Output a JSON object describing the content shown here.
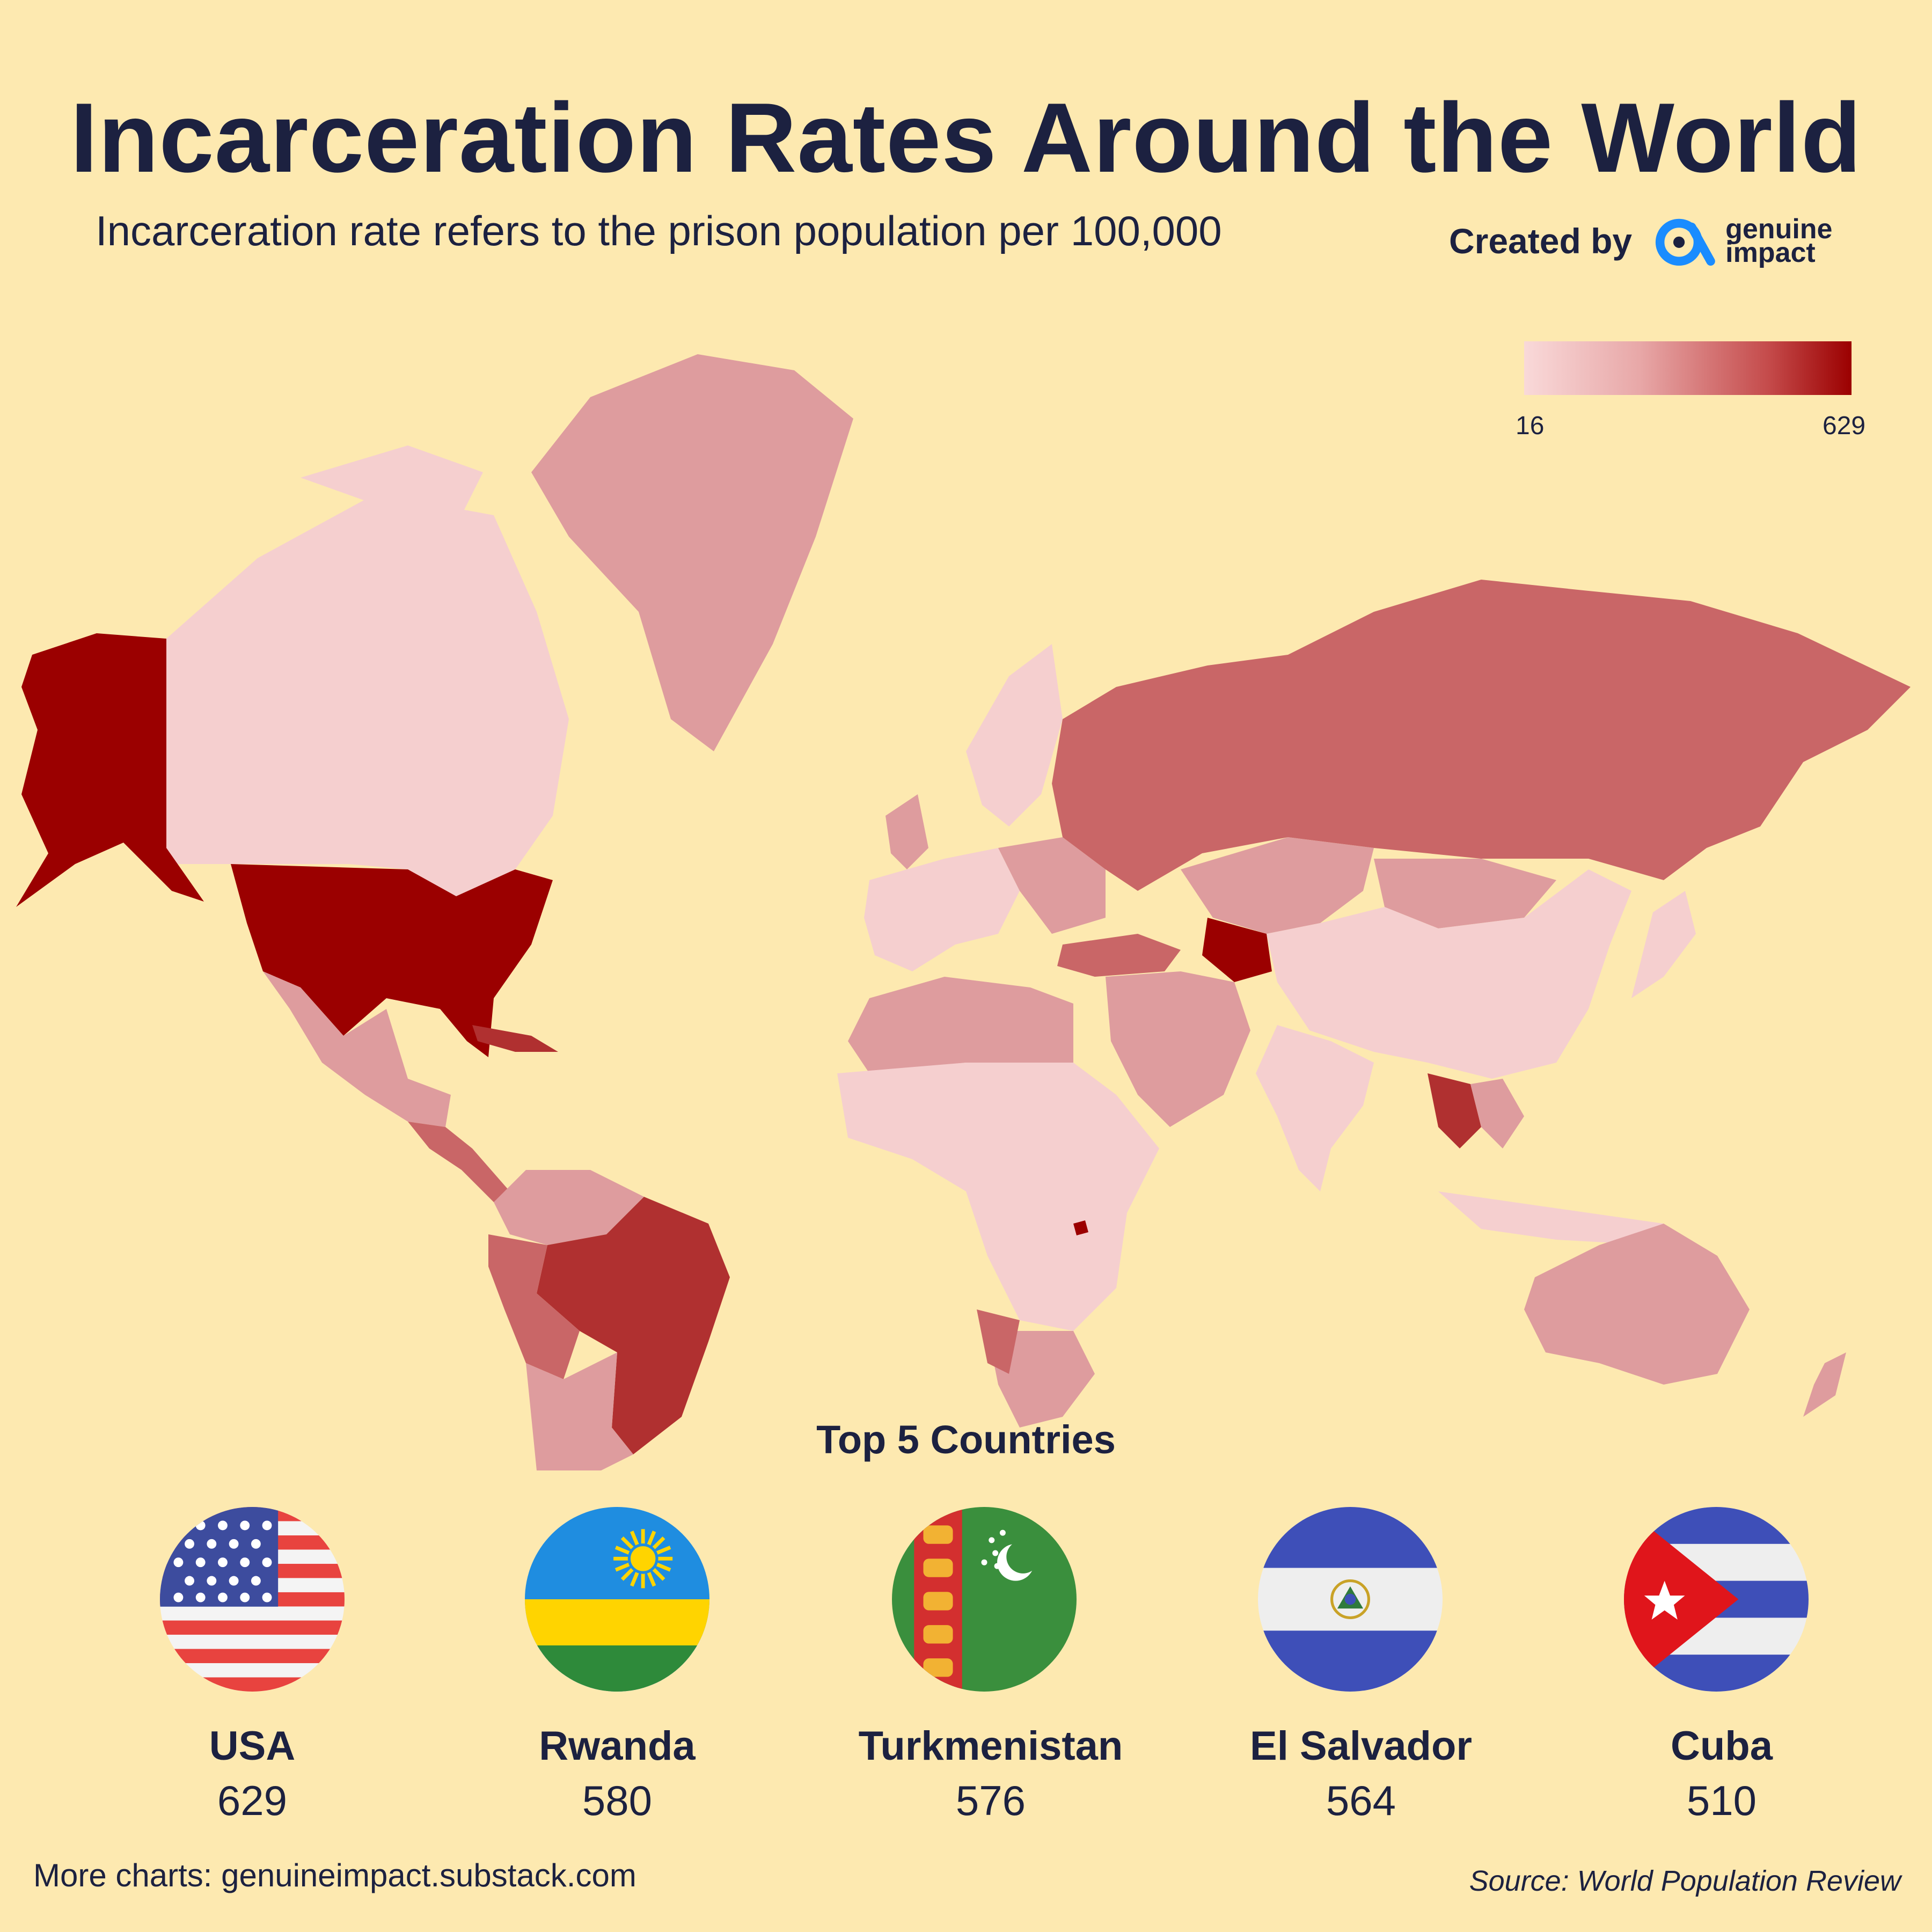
{
  "header": {
    "title": "Incarceration Rates Around the World",
    "subtitle": "Incarceration rate refers to the prison population per 100,000",
    "credit_label": "Created by",
    "brand_line1": "genuine",
    "brand_line2": "impact"
  },
  "legend": {
    "min_label": "16",
    "max_label": "629",
    "min_color": "#f9d9d9",
    "max_color": "#9b0000"
  },
  "colors": {
    "background": "#fde9b0",
    "text": "#1c2140",
    "logo_blue": "#1a8cff"
  },
  "top5": {
    "heading": "Top 5 Countries",
    "countries": [
      {
        "name": "USA",
        "value": "629",
        "flag_icon": "usa-flag-icon"
      },
      {
        "name": "Rwanda",
        "value": "580",
        "flag_icon": "rwanda-flag-icon"
      },
      {
        "name": "Turkmenistan",
        "value": "576",
        "flag_icon": "turkmenistan-flag-icon"
      },
      {
        "name": "El Salvador",
        "value": "564",
        "flag_icon": "el-salvador-flag-icon"
      },
      {
        "name": "Cuba",
        "value": "510",
        "flag_icon": "cuba-flag-icon"
      }
    ]
  },
  "footer": {
    "more": "More charts: genuineimpact.substack.com",
    "source": "Source: World Population Review"
  }
}
